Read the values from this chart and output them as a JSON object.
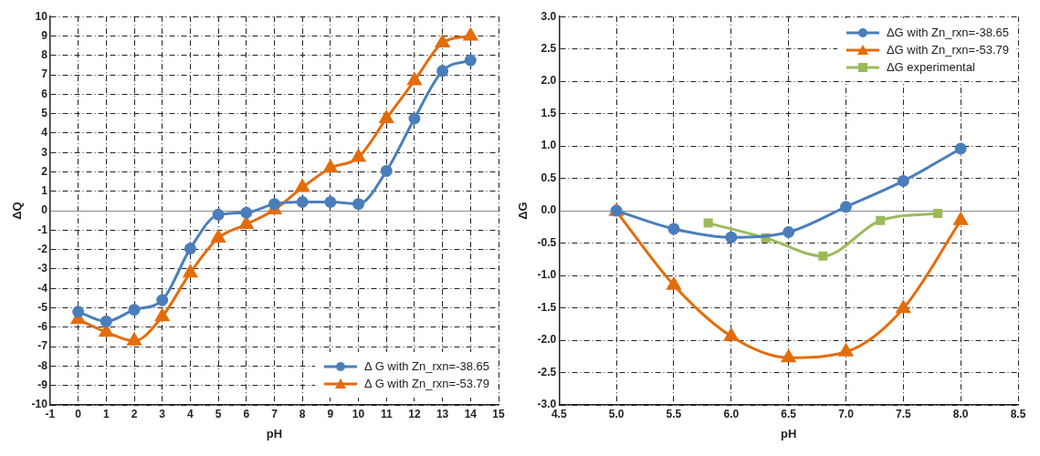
{
  "chart_data": [
    {
      "type": "line",
      "xlabel": "pH",
      "ylabel": "ΔQ",
      "xlim": [
        -1,
        15
      ],
      "xticks": [
        -1,
        0,
        1,
        2,
        3,
        4,
        5,
        6,
        7,
        8,
        9,
        10,
        11,
        12,
        13,
        14,
        15
      ],
      "ylim": [
        -10,
        10
      ],
      "yticks": [
        -10,
        -9,
        -8,
        -7,
        -6,
        -5,
        -4,
        -3,
        -2,
        -1,
        0,
        1,
        2,
        3,
        4,
        5,
        6,
        7,
        8,
        9,
        10
      ],
      "grid": true,
      "legend": "bottom right",
      "line_style": "solid",
      "series": [
        {
          "name": "Δ G with Zn_rxn=-38.65",
          "color": "#4a7ebb",
          "marker": "circle",
          "x": [
            0,
            1,
            2,
            3,
            4,
            5,
            6,
            7,
            8,
            9,
            10,
            11,
            12,
            13,
            14
          ],
          "values": [
            -5.2,
            -5.7,
            -5.1,
            -4.6,
            -1.95,
            -0.2,
            -0.1,
            0.35,
            0.45,
            0.45,
            0.35,
            2.05,
            4.75,
            7.2,
            7.75
          ]
        },
        {
          "name": "Δ G with Zn_rxn=-53.79",
          "color": "#e46c0a",
          "marker": "triangle",
          "x": [
            0,
            1,
            2,
            3,
            4,
            5,
            6,
            7,
            8,
            9,
            10,
            11,
            12,
            13,
            14
          ],
          "values": [
            -5.6,
            -6.25,
            -6.7,
            -5.45,
            -3.2,
            -1.4,
            -0.7,
            0.05,
            1.2,
            2.2,
            2.75,
            4.75,
            6.7,
            8.65,
            9.0
          ]
        }
      ]
    },
    {
      "type": "line",
      "xlabel": "pH",
      "ylabel": "ΔG",
      "xlim": [
        4.5,
        8.5
      ],
      "xticks": [
        {
          "value": 4.5,
          "label": "4.5"
        },
        {
          "value": 5,
          "label": "5.0"
        },
        {
          "value": 5.5,
          "label": "5.5"
        },
        {
          "value": 6,
          "label": "6.0"
        },
        {
          "value": 6.5,
          "label": "6.5"
        },
        {
          "value": 7,
          "label": "7.0"
        },
        {
          "value": 7.5,
          "label": "7.5"
        },
        {
          "value": 8,
          "label": "8.0"
        },
        {
          "value": 8.5,
          "label": "8.5"
        }
      ],
      "ylim": [
        -3,
        3
      ],
      "yticks": [
        {
          "value": -3,
          "label": "-3.0"
        },
        {
          "value": -2.5,
          "label": "-2.5"
        },
        {
          "value": -2,
          "label": "-2.0"
        },
        {
          "value": -1.5,
          "label": "-1.5"
        },
        {
          "value": -1,
          "label": "-1.0"
        },
        {
          "value": -0.5,
          "label": "-0.5"
        },
        {
          "value": 0,
          "label": "0.0"
        },
        {
          "value": 0.5,
          "label": "0.5"
        },
        {
          "value": 1,
          "label": "1.0"
        },
        {
          "value": 1.5,
          "label": "1.5"
        },
        {
          "value": 2,
          "label": "2.0"
        },
        {
          "value": 2.5,
          "label": "2.5"
        },
        {
          "value": 3,
          "label": "3.0"
        }
      ],
      "grid": true,
      "legend": "top right",
      "line_style": "solid",
      "series": [
        {
          "name": "ΔG with Zn_rxn=-38.65",
          "color": "#4a7ebb",
          "marker": "circle",
          "x": [
            5,
            5.5,
            6,
            6.5,
            7,
            7.5,
            8
          ],
          "values": [
            0.0,
            -0.28,
            -0.41,
            -0.33,
            0.06,
            0.46,
            0.96
          ]
        },
        {
          "name": "ΔG with Zn_rxn=-53.79",
          "color": "#e46c0a",
          "marker": "triangle",
          "x": [
            5,
            5.5,
            6,
            6.5,
            7,
            7.5,
            8
          ],
          "values": [
            -0.01,
            -1.15,
            -1.94,
            -2.27,
            -2.18,
            -1.51,
            -0.15
          ]
        },
        {
          "name": "ΔG experimental",
          "color": "#9bbb59",
          "marker": "square",
          "x": [
            5.8,
            6.3,
            6.8,
            7.3,
            7.8
          ],
          "values": [
            -0.19,
            -0.42,
            -0.7,
            -0.15,
            -0.04
          ]
        }
      ]
    }
  ]
}
